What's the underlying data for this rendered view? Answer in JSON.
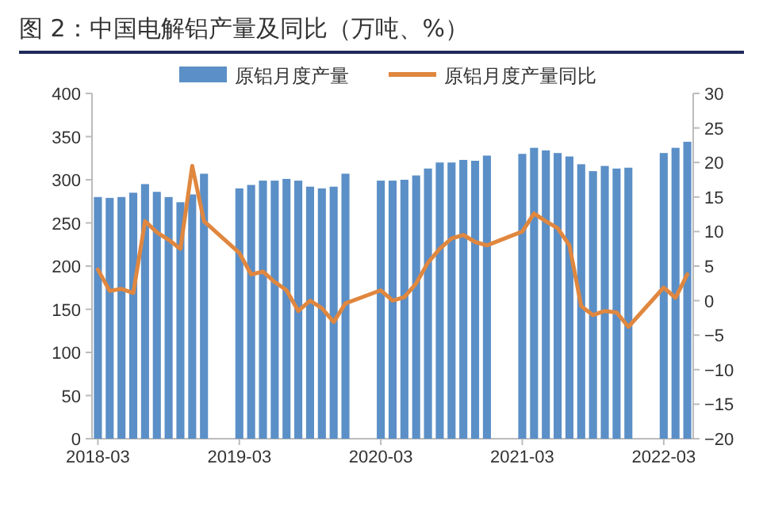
{
  "chart_data": {
    "type": "bar",
    "title": "图 2：中国电解铝产量及同比（万吨、%）",
    "categories": [
      "2018-03",
      null,
      null,
      null,
      null,
      null,
      null,
      null,
      null,
      null,
      null,
      null,
      "2019-03",
      null,
      null,
      null,
      null,
      null,
      null,
      null,
      null,
      null,
      null,
      null,
      "2020-03",
      null,
      null,
      null,
      null,
      null,
      null,
      null,
      null,
      null,
      null,
      null,
      "2021-03",
      null,
      null,
      null,
      null,
      null,
      null,
      null,
      null,
      null,
      null,
      null,
      "2022-03",
      null,
      null
    ],
    "series": [
      {
        "name": "原铝月度产量",
        "color": "#5b8fc7",
        "values": [
          280,
          279,
          280,
          285,
          295,
          286,
          280,
          274,
          283,
          307,
          null,
          null,
          290,
          294,
          299,
          299,
          301,
          299,
          292,
          290,
          292,
          307,
          null,
          null,
          299,
          299,
          300,
          305,
          313,
          320,
          320,
          323,
          322,
          328,
          null,
          null,
          330,
          337,
          334,
          331,
          327,
          318,
          310,
          316,
          313,
          314,
          null,
          null,
          331,
          337,
          344
        ]
      },
      {
        "name": "原铝月度产量同比",
        "type": "line",
        "axis": "y2",
        "color": "#e0873f",
        "values": [
          4.5,
          1.4,
          1.7,
          1.1,
          11.5,
          9.9,
          8.8,
          7.5,
          19.5,
          11.5,
          null,
          null,
          6.9,
          3.8,
          4.2,
          2.7,
          1.5,
          -1.5,
          0,
          -1.1,
          -3.1,
          -0.4,
          null,
          null,
          1.5,
          0,
          0.5,
          2.5,
          5.5,
          7.5,
          9,
          9.5,
          8.5,
          8,
          null,
          null,
          10,
          12.6,
          11.5,
          10.5,
          8,
          -0.8,
          -2.1,
          -1.5,
          -1.7,
          -3.8,
          null,
          null,
          1.9,
          0.4,
          3.8
        ]
      }
    ],
    "ylim": [
      0,
      400
    ],
    "yticks": [
      0,
      50,
      100,
      150,
      200,
      250,
      300,
      350,
      400
    ],
    "y2lim": [
      -20,
      30
    ],
    "y2ticks": [
      -20,
      -15,
      -10,
      -5,
      0,
      5,
      10,
      15,
      20,
      25,
      30
    ],
    "legend": "top",
    "grid": false,
    "marker": "none",
    "line_style": "solid"
  }
}
